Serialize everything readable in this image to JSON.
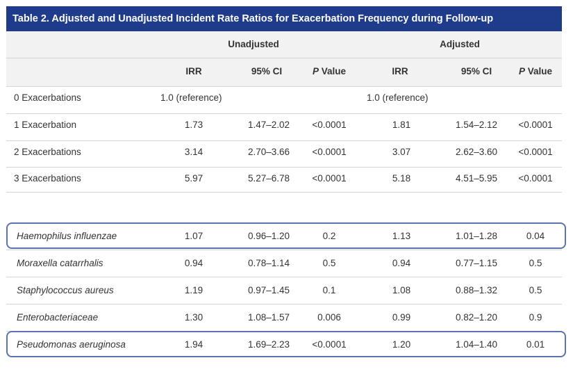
{
  "table": {
    "title": "Table 2. Adjusted and Unadjusted Incident Rate Ratios for Exacerbation Frequency during Follow-up",
    "group_headers": [
      "Unadjusted",
      "Adjusted"
    ],
    "columns": [
      {
        "p": "",
        "rest": "IRR"
      },
      {
        "p": "",
        "rest": "95% CI"
      },
      {
        "p": "P",
        "rest": " Value"
      },
      {
        "p": "",
        "rest": "IRR"
      },
      {
        "p": "",
        "rest": "95% CI"
      },
      {
        "p": "P",
        "rest": " Value"
      }
    ],
    "exacerbation_rows": [
      {
        "label": "0 Exacerbations",
        "unadj_ref": "1.0 (reference)",
        "adj_ref": "1.0 (reference)"
      },
      {
        "label": "1 Exacerbation",
        "values": [
          "1.73",
          "1.47–2.02",
          "<0.0001",
          "1.81",
          "1.54–2.12",
          "<0.0001"
        ]
      },
      {
        "label": "2 Exacerbations",
        "values": [
          "3.14",
          "2.70–3.66",
          "<0.0001",
          "3.07",
          "2.62–3.60",
          "<0.0001"
        ]
      },
      {
        "label": "3 Exacerbations",
        "values": [
          "5.97",
          "5.27–6.78",
          "<0.0001",
          "5.18",
          "4.51–5.95",
          "<0.0001"
        ]
      }
    ],
    "organism_rows": [
      {
        "label": "Haemophilus influenzae",
        "values": [
          "1.07",
          "0.96–1.20",
          "0.2",
          "1.13",
          "1.01–1.28",
          "0.04"
        ],
        "highlighted": true
      },
      {
        "label": "Moraxella catarrhalis",
        "values": [
          "0.94",
          "0.78–1.14",
          "0.5",
          "0.94",
          "0.77–1.15",
          "0.5"
        ],
        "highlighted": false
      },
      {
        "label": "Staphylococcus aureus",
        "values": [
          "1.19",
          "0.97–1.45",
          "0.1",
          "1.08",
          "0.88–1.32",
          "0.5"
        ],
        "highlighted": false
      },
      {
        "label": "Enterobacteriaceae",
        "values": [
          "1.30",
          "1.08–1.57",
          "0.006",
          "0.99",
          "0.82–1.20",
          "0.9"
        ],
        "highlighted": false
      },
      {
        "label": "Pseudomonas aeruginosa",
        "values": [
          "1.94",
          "1.69–2.23",
          "<0.0001",
          "1.20",
          "1.04–1.40",
          "0.01"
        ],
        "highlighted": true
      }
    ],
    "highlight_color": "#5b72b3",
    "title_bar_color": "#1f3c8c"
  }
}
